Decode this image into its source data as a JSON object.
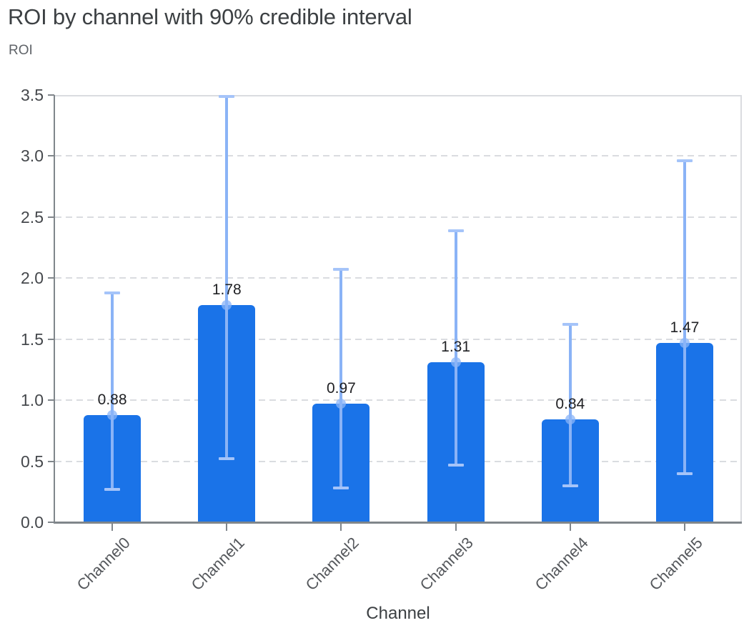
{
  "chart_data": {
    "type": "bar",
    "title": "ROI by channel with 90% credible interval",
    "ylabel": "ROI",
    "xlabel": "Channel",
    "categories": [
      "Channel0",
      "Channel1",
      "Channel2",
      "Channel3",
      "Channel4",
      "Channel5"
    ],
    "values": [
      0.88,
      1.78,
      0.97,
      1.31,
      0.84,
      1.47
    ],
    "bar_labels": [
      "0.88",
      "1.78",
      "0.97",
      "1.31",
      "0.84",
      "1.47"
    ],
    "error_low": [
      0.27,
      0.52,
      0.28,
      0.47,
      0.3,
      0.4
    ],
    "error_high": [
      1.88,
      3.49,
      2.07,
      2.39,
      1.62,
      2.96
    ],
    "interval_label": "90% credible interval",
    "ylim": [
      0,
      3.5
    ],
    "ytick_values": [
      0,
      0.5,
      1,
      1.5,
      2,
      2.5,
      3,
      3.5
    ],
    "ytick_labels": [
      "0.0",
      "0.5",
      "1.0",
      "1.5",
      "2.0",
      "2.5",
      "3.0",
      "3.5"
    ],
    "grid": "horizontal-dashed",
    "legend": "none",
    "colors": {
      "bar": "#1A73E8",
      "error_line": "#8AB3F6",
      "error_cap": "#A5C4F9",
      "mean_dot": "rgba(138,180,248,0.75)",
      "gridline": "#DADCE0",
      "axis_line": "#80868B",
      "title": "#3C4043",
      "tick_label": "#45484C",
      "value_label": "#202124",
      "background": "#FFFFFF"
    }
  }
}
